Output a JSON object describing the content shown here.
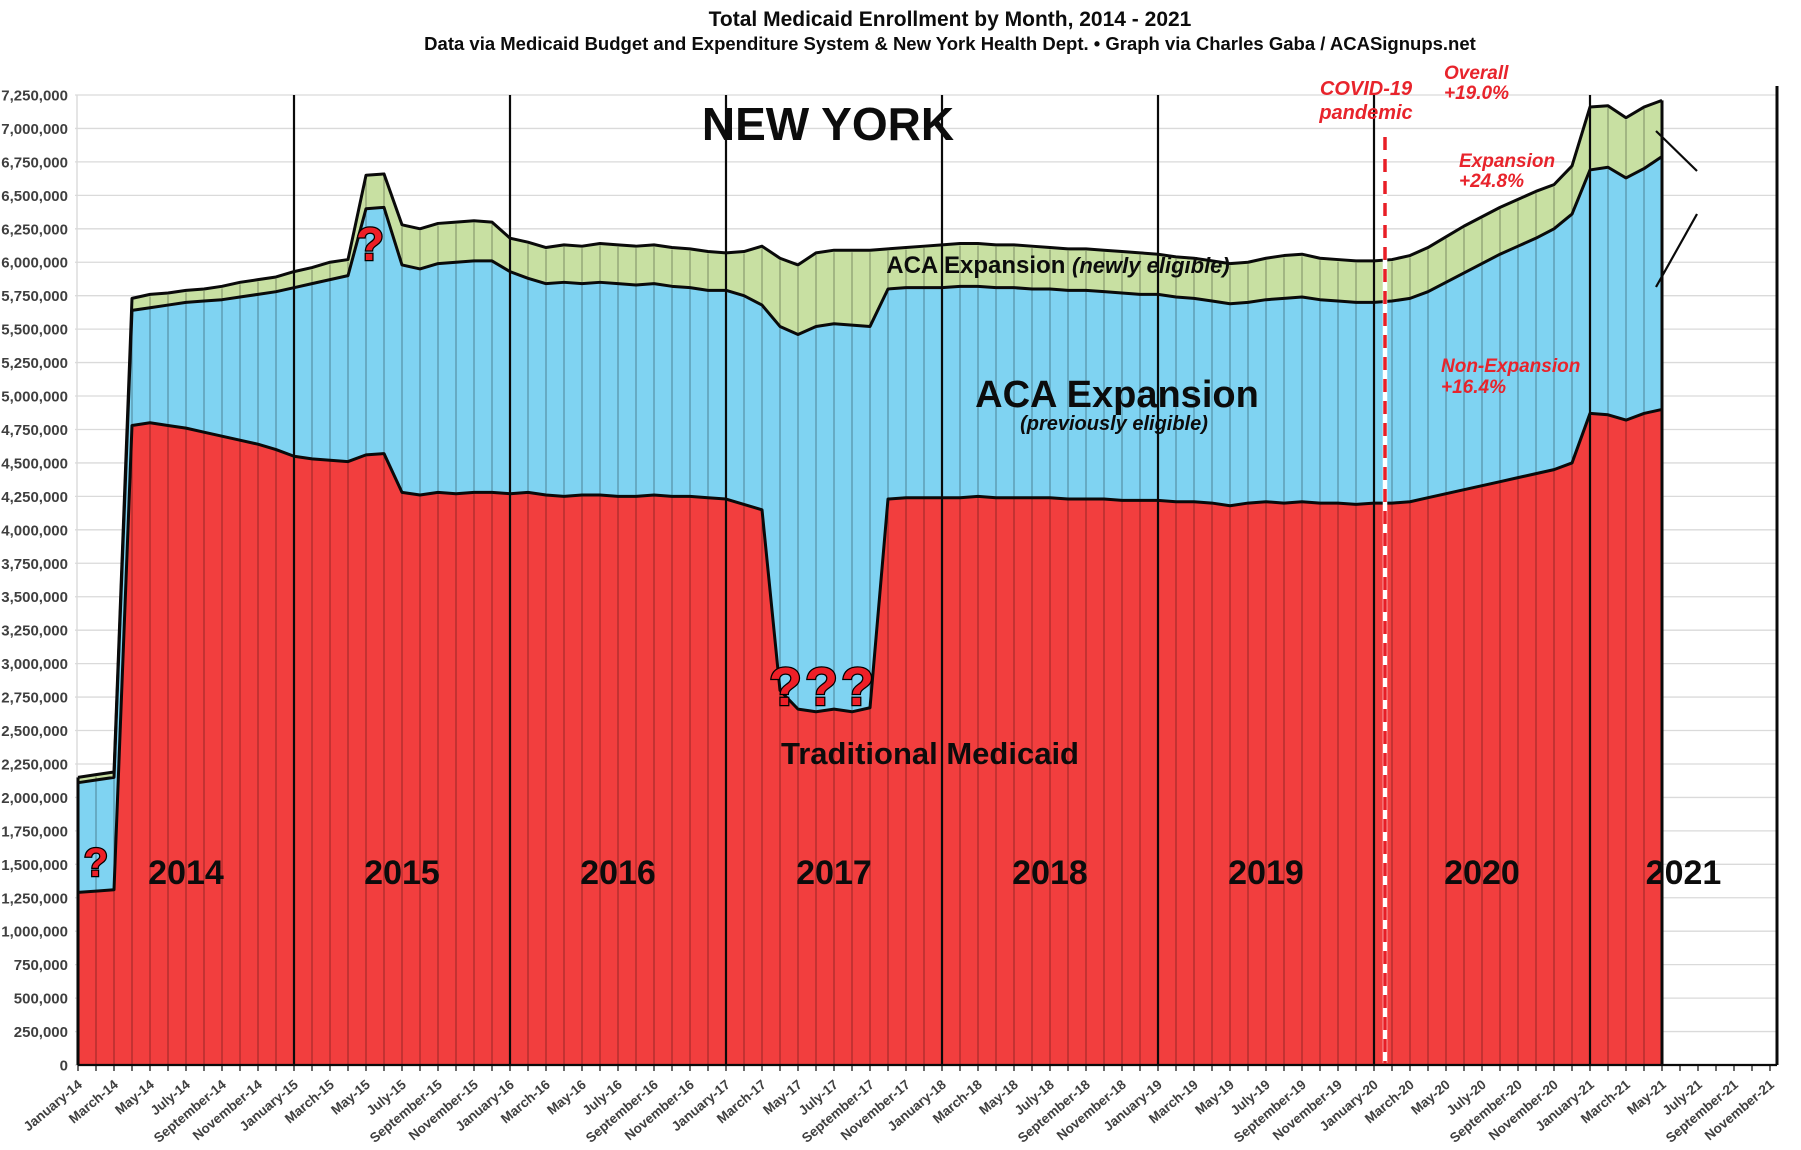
{
  "title": "Total Medicaid Enrollment by Month, 2014 - 2021",
  "subtitle": "Data via Medicaid Budget and Expenditure System & New York Health Dept.  •  Graph via Charles Gaba / ACASignups.net",
  "chart_data": {
    "type": "area",
    "stacked": true,
    "state_label": "NEW YORK",
    "start_month": "January-2014",
    "end_month": "May-2021",
    "frequency": "monthly",
    "ylim": [
      0,
      7250000
    ],
    "ytick_step": 250000,
    "grid": "horizontal-light",
    "x_tick_labels": [
      "January-14",
      "March-14",
      "May-14",
      "July-14",
      "September-14",
      "November-14",
      "January-15",
      "March-15",
      "May-15",
      "July-15",
      "September-15",
      "November-15",
      "January-16",
      "March-16",
      "May-16",
      "July-16",
      "September-16",
      "November-16",
      "January-17",
      "March-17",
      "May-17",
      "July-17",
      "September-17",
      "November-17",
      "January-18",
      "March-18",
      "May-18",
      "July-18",
      "September-18",
      "November-18",
      "January-19",
      "March-19",
      "May-19",
      "July-19",
      "September-19",
      "November-19",
      "January-20",
      "March-20",
      "May-20",
      "July-20",
      "September-20",
      "November-20",
      "January-21",
      "March-21",
      "May-21",
      "July-21",
      "September-21",
      "November-21"
    ],
    "year_labels": [
      "2014",
      "2015",
      "2016",
      "2017",
      "2018",
      "2019",
      "2020",
      "2021"
    ],
    "series_note": "values are cumulative stacked tops (persons), January-2014 through May-2021",
    "series": [
      {
        "name": "Traditional Medicaid",
        "color": "#f23e3e",
        "top_values": [
          1290000,
          1300000,
          1310000,
          4780000,
          4800000,
          4780000,
          4760000,
          4730000,
          4700000,
          4670000,
          4640000,
          4600000,
          4550000,
          4530000,
          4520000,
          4510000,
          4560000,
          4570000,
          4280000,
          4260000,
          4280000,
          4270000,
          4280000,
          4280000,
          4270000,
          4280000,
          4260000,
          4250000,
          4260000,
          4260000,
          4250000,
          4250000,
          4260000,
          4250000,
          4250000,
          4240000,
          4230000,
          4190000,
          4150000,
          2800000,
          2660000,
          2640000,
          2660000,
          2640000,
          2670000,
          4230000,
          4240000,
          4240000,
          4240000,
          4240000,
          4250000,
          4240000,
          4240000,
          4240000,
          4240000,
          4230000,
          4230000,
          4230000,
          4220000,
          4220000,
          4220000,
          4210000,
          4210000,
          4200000,
          4180000,
          4200000,
          4210000,
          4200000,
          4210000,
          4200000,
          4200000,
          4190000,
          4200000,
          4200000,
          4210000,
          4240000,
          4270000,
          4300000,
          4330000,
          4360000,
          4390000,
          4420000,
          4450000,
          4500000,
          4870000,
          4860000,
          4820000,
          4870000,
          4900000
        ]
      },
      {
        "name": "ACA Expansion (previously eligible)",
        "color": "#7fd3f2",
        "top_values": [
          2110000,
          2130000,
          2150000,
          5640000,
          5660000,
          5680000,
          5700000,
          5710000,
          5720000,
          5740000,
          5760000,
          5780000,
          5810000,
          5840000,
          5870000,
          5900000,
          6400000,
          6410000,
          5980000,
          5950000,
          5990000,
          6000000,
          6010000,
          6010000,
          5930000,
          5880000,
          5840000,
          5850000,
          5840000,
          5850000,
          5840000,
          5830000,
          5840000,
          5820000,
          5810000,
          5790000,
          5790000,
          5750000,
          5680000,
          5520000,
          5460000,
          5520000,
          5540000,
          5530000,
          5520000,
          5800000,
          5810000,
          5810000,
          5810000,
          5820000,
          5820000,
          5810000,
          5810000,
          5800000,
          5800000,
          5790000,
          5790000,
          5780000,
          5770000,
          5760000,
          5760000,
          5740000,
          5730000,
          5710000,
          5690000,
          5700000,
          5720000,
          5730000,
          5740000,
          5720000,
          5710000,
          5700000,
          5700000,
          5710000,
          5730000,
          5780000,
          5850000,
          5920000,
          5990000,
          6060000,
          6120000,
          6180000,
          6250000,
          6360000,
          6690000,
          6710000,
          6630000,
          6700000,
          6790000
        ]
      },
      {
        "name": "ACA Expansion (newly eligible)",
        "color": "#c8e0a2",
        "top_values": [
          2150000,
          2170000,
          2190000,
          5730000,
          5760000,
          5770000,
          5790000,
          5800000,
          5820000,
          5850000,
          5870000,
          5890000,
          5930000,
          5960000,
          6000000,
          6020000,
          6650000,
          6660000,
          6280000,
          6250000,
          6290000,
          6300000,
          6310000,
          6300000,
          6180000,
          6150000,
          6110000,
          6130000,
          6120000,
          6140000,
          6130000,
          6120000,
          6130000,
          6110000,
          6100000,
          6080000,
          6070000,
          6080000,
          6120000,
          6030000,
          5980000,
          6070000,
          6090000,
          6090000,
          6090000,
          6100000,
          6110000,
          6120000,
          6130000,
          6140000,
          6140000,
          6130000,
          6130000,
          6120000,
          6110000,
          6100000,
          6100000,
          6090000,
          6080000,
          6070000,
          6060000,
          6040000,
          6030000,
          6010000,
          5990000,
          6000000,
          6030000,
          6050000,
          6060000,
          6030000,
          6020000,
          6010000,
          6010000,
          6020000,
          6050000,
          6110000,
          6190000,
          6270000,
          6340000,
          6410000,
          6470000,
          6530000,
          6580000,
          6720000,
          7160000,
          7170000,
          7080000,
          7160000,
          7210000
        ]
      }
    ],
    "annotations": {
      "state": "NEW YORK",
      "aca_newly_bold": "ACA Expansion ",
      "aca_newly_italic": "(newly eligible)",
      "aca_prev_bold": "ACA Expansion",
      "aca_prev_italic": "(previously eligible)",
      "traditional_label": "Traditional Medicaid",
      "covid_line1": "COVID-19",
      "covid_line2": "pandemic",
      "overall_line1": "Overall",
      "overall_line2": "+19.0%",
      "expansion_line1": "Expansion",
      "expansion_line2": "+24.8%",
      "nonexpansion_line1": "Non-Expansion",
      "nonexpansion_line2": "+16.4%",
      "question_feb14": "?",
      "question_may15": "?",
      "question_2017": "???"
    },
    "colors": {
      "outline": "#0a0a0a",
      "gridline": "#dadada",
      "axis_text": "#3f3f3f",
      "annotation_red": "#e8242c",
      "covid_dash_red": "#e81e26",
      "question_red": "#ee1f27"
    }
  }
}
